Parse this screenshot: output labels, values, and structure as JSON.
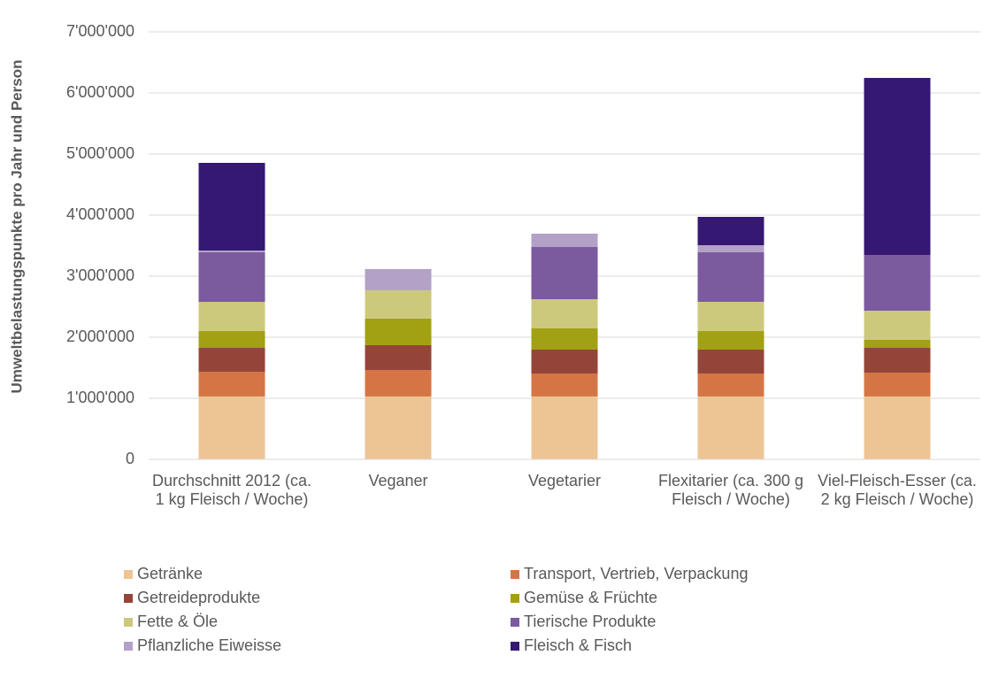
{
  "chart_data": {
    "type": "stacked_bar",
    "y_label": "Umweltbelastungspunkte pro Jahr und Person",
    "categories": [
      "Durchschnitt 2012 (ca. 1 kg Fleisch / Woche)",
      "Veganer",
      "Vegetarier",
      "Flexitarier (ca. 300 g Fleisch / Woche)",
      "Viel-Fleisch-Esser (ca. 2 kg Fleisch / Woche)"
    ],
    "series": [
      {
        "name": "Getränke",
        "color": "#edc595",
        "values": [
          1030000,
          1030000,
          1030000,
          1030000,
          1030000
        ]
      },
      {
        "name": "Transport, Vertrieb, Verpackung",
        "color": "#d57545",
        "values": [
          405000,
          434000,
          376000,
          376000,
          390000
        ]
      },
      {
        "name": "Getreideprodukte",
        "color": "#94453a",
        "values": [
          391000,
          406000,
          391000,
          391000,
          406000
        ]
      },
      {
        "name": "Gemüse & Früchte",
        "color": "#a2a013",
        "values": [
          275000,
          435000,
          348000,
          304000,
          131000
        ]
      },
      {
        "name": "Fette & Öle",
        "color": "#cdc97c",
        "values": [
          478000,
          464000,
          478000,
          479000,
          478000
        ]
      },
      {
        "name": "Tierische Produkte",
        "color": "#7b5a9e",
        "values": [
          812000,
          0,
          855000,
          811000,
          913000
        ]
      },
      {
        "name": "Pflanzliche Eiweisse",
        "color": "#b3a1c8",
        "values": [
          29000,
          348000,
          218000,
          116000,
          0
        ]
      },
      {
        "name": "Fleisch & Fisch",
        "color": "#341872",
        "values": [
          1435000,
          0,
          0,
          464000,
          2898000
        ]
      }
    ],
    "ylim": [
      0,
      7000000
    ],
    "yticks": [
      0,
      {
        "value": 1000000,
        "label": "1'000'000"
      },
      {
        "value": 2000000,
        "label": "2'000'000"
      },
      {
        "value": 3000000,
        "label": "3'000'000"
      },
      {
        "value": 4000000,
        "label": "4'000'000"
      },
      {
        "value": 5000000,
        "label": "5'000'000"
      },
      {
        "value": 6000000,
        "label": "6'000'000"
      },
      {
        "value": 7000000,
        "label": "7'000'000"
      }
    ],
    "grid": true,
    "legend": "bottom"
  }
}
